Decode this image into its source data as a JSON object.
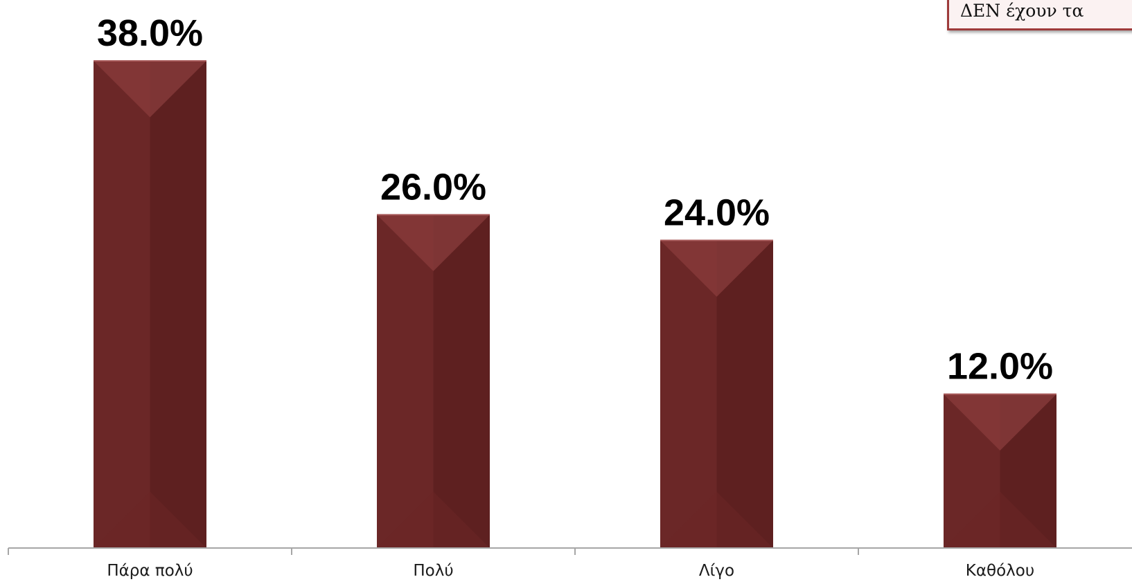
{
  "legend_note": "ΔΕΝ έχουν τα",
  "colors": {
    "bar_base": "#6b2727",
    "bar_dark": "#5e2020",
    "bar_light": "#8a3c3c",
    "axis": "#a6a6a6",
    "value_text": "#000000",
    "category_text": "#1a1a1a"
  },
  "chart_data": {
    "type": "bar",
    "categories": [
      "Πάρα πολύ",
      "Πολύ",
      "Λίγο",
      "Καθόλου"
    ],
    "values": [
      38.0,
      26.0,
      24.0,
      12.0
    ],
    "data_labels": [
      "38.0%",
      "26.0%",
      "24.0%",
      "12.0%"
    ],
    "ylim": [
      0,
      38.0
    ],
    "grid": false
  }
}
